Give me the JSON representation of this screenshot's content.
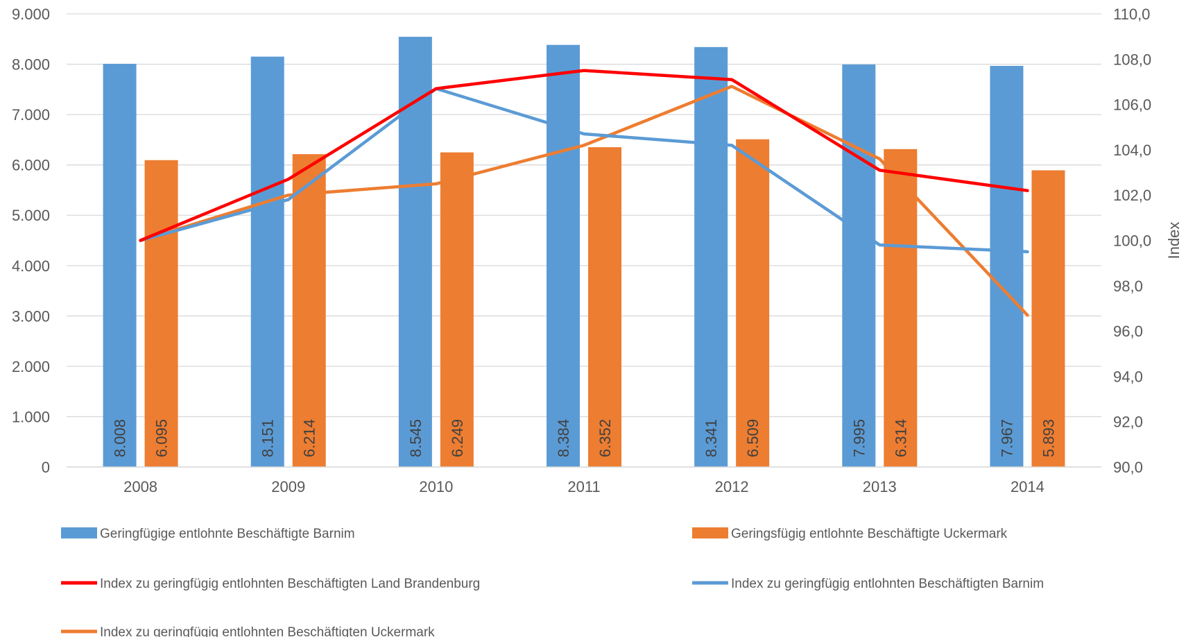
{
  "chart_data": {
    "type": "bar",
    "categories": [
      "2008",
      "2009",
      "2010",
      "2011",
      "2012",
      "2013",
      "2014"
    ],
    "y_left": {
      "lim": [
        0,
        9000
      ],
      "ticks": [
        0,
        1000,
        2000,
        3000,
        4000,
        5000,
        6000,
        7000,
        8000,
        9000
      ],
      "tick_labels": [
        "0",
        "1.000",
        "2.000",
        "3.000",
        "4.000",
        "5.000",
        "6.000",
        "7.000",
        "8.000",
        "9.000"
      ]
    },
    "y_right": {
      "label": "Index",
      "lim": [
        90,
        110
      ],
      "ticks": [
        90,
        92,
        94,
        96,
        98,
        100,
        102,
        104,
        106,
        108,
        110
      ],
      "tick_labels": [
        "90,0",
        "92,0",
        "94,0",
        "96,0",
        "98,0",
        "100,0",
        "102,0",
        "104,0",
        "106,0",
        "108,0",
        "110,0"
      ]
    },
    "grid": true,
    "legend_position": "bottom",
    "bar_series": [
      {
        "name": "Geringfügige entlohnte Beschäftigte Barnim",
        "color": "#5B9BD5",
        "values": [
          8008,
          8151,
          8545,
          8384,
          8341,
          7995,
          7967
        ],
        "labels": [
          "8.008",
          "8.151",
          "8.545",
          "8.384",
          "8.341",
          "7.995",
          "7.967"
        ]
      },
      {
        "name": "Geringsfügig entlohnte Beschäftigte Uckermark",
        "color": "#ED7D31",
        "values": [
          6095,
          6214,
          6249,
          6352,
          6509,
          6314,
          5893
        ],
        "labels": [
          "6.095",
          "6.214",
          "6.249",
          "6.352",
          "6.509",
          "6.314",
          "5.893"
        ]
      }
    ],
    "line_series": [
      {
        "name": "Index zu geringfügig entlohnten Beschäftigten Land Brandenburg",
        "color": "#FF0000",
        "axis": "right",
        "values": [
          100.0,
          102.7,
          106.7,
          107.5,
          107.1,
          103.1,
          102.2
        ]
      },
      {
        "name": "Index zu geringfügig entlohnten Beschäftigten Barnim",
        "color": "#5B9BD5",
        "axis": "right",
        "values": [
          100.0,
          101.8,
          106.7,
          104.7,
          104.2,
          99.8,
          99.5
        ]
      },
      {
        "name": "Index zu geringfügig entlohnten Beschäftigten Uckermark",
        "color": "#ED7D31",
        "axis": "right",
        "values": [
          100.0,
          102.0,
          102.5,
          104.2,
          106.8,
          103.6,
          96.7
        ]
      }
    ]
  }
}
